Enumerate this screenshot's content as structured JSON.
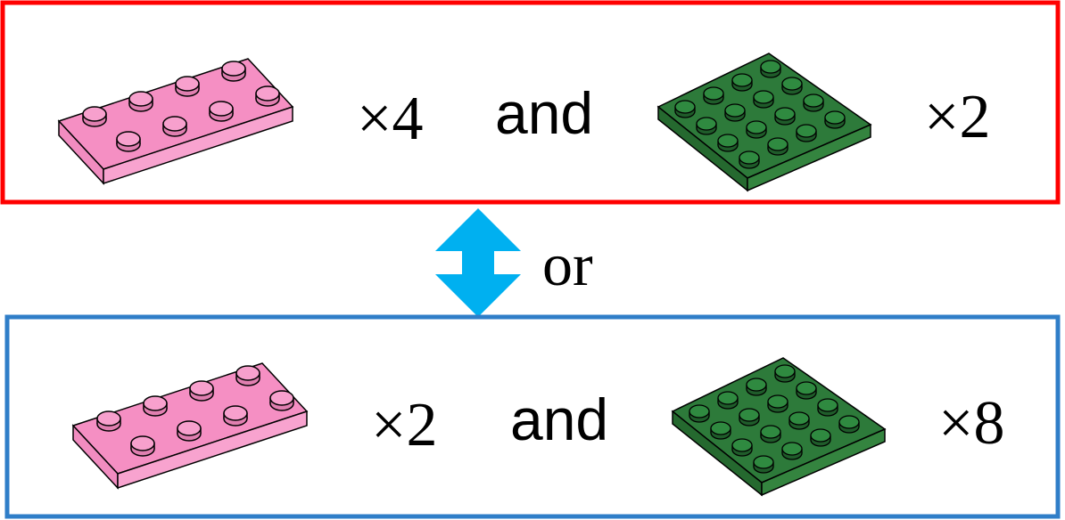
{
  "colors": {
    "red_box": "#ff0000",
    "blue_box": "#2f7ec8",
    "arrow": "#00b0f0",
    "pink_brick": "#f58fc3",
    "green_plate": "#2d7a3a",
    "outline": "#000000"
  },
  "icons": {
    "pink": "lego-2x4-plate-pink-icon",
    "green": "lego-4x4-plate-green-icon",
    "arrow": "double-arrow-vertical-icon"
  },
  "option_a": {
    "pink_qty": "×4",
    "joiner": "and",
    "green_qty": "×2"
  },
  "separator": {
    "label": "or"
  },
  "option_b": {
    "pink_qty": "×2",
    "joiner": "and",
    "green_qty": "×8"
  }
}
